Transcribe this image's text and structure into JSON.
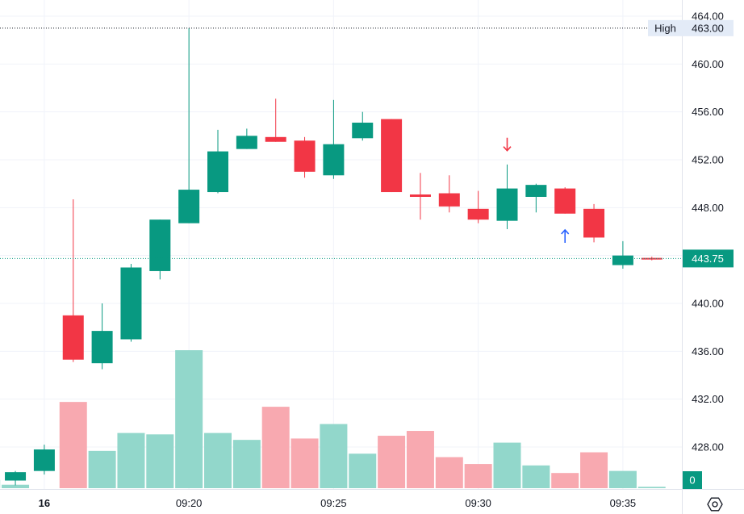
{
  "chart_data": {
    "type": "candlestick",
    "x_ticks": [
      "16",
      "09:20",
      "09:25",
      "09:30",
      "09:35"
    ],
    "y_ticks": [
      "464.00",
      "460.00",
      "456.00",
      "452.00",
      "448.00",
      "444.00",
      "440.00",
      "436.00",
      "432.00",
      "428.00"
    ],
    "ylim": [
      426.5,
      465
    ],
    "candles": [
      {
        "t": "09:14",
        "o": 425.2,
        "h": 426.0,
        "l": 424.8,
        "c": 425.9
      },
      {
        "t": "09:15",
        "o": 426.0,
        "h": 428.2,
        "l": 425.7,
        "c": 427.8
      },
      {
        "t": "09:16",
        "o": 439.0,
        "h": 448.7,
        "l": 435.1,
        "c": 435.3
      },
      {
        "t": "09:17",
        "o": 435.0,
        "h": 440.0,
        "l": 434.5,
        "c": 437.7
      },
      {
        "t": "09:18",
        "o": 437.0,
        "h": 443.3,
        "l": 436.8,
        "c": 443.0
      },
      {
        "t": "09:19",
        "o": 442.7,
        "h": 447.0,
        "l": 442.0,
        "c": 447.0
      },
      {
        "t": "09:20",
        "o": 446.7,
        "h": 463.0,
        "l": 446.7,
        "c": 449.5
      },
      {
        "t": "09:21",
        "o": 449.3,
        "h": 454.5,
        "l": 449.2,
        "c": 452.7
      },
      {
        "t": "09:22",
        "o": 452.9,
        "h": 454.6,
        "l": 452.9,
        "c": 454.0
      },
      {
        "t": "09:23",
        "o": 453.9,
        "h": 457.1,
        "l": 453.5,
        "c": 453.5
      },
      {
        "t": "09:24",
        "o": 453.6,
        "h": 453.9,
        "l": 450.5,
        "c": 451.0
      },
      {
        "t": "09:25",
        "o": 450.7,
        "h": 457.0,
        "l": 450.4,
        "c": 453.3
      },
      {
        "t": "09:26",
        "o": 453.8,
        "h": 456.0,
        "l": 453.6,
        "c": 455.1
      },
      {
        "t": "09:27",
        "o": 455.4,
        "h": 455.4,
        "l": 449.3,
        "c": 449.3
      },
      {
        "t": "09:28",
        "o": 449.1,
        "h": 450.9,
        "l": 447.0,
        "c": 448.9
      },
      {
        "t": "09:29",
        "o": 449.2,
        "h": 450.7,
        "l": 447.6,
        "c": 448.1
      },
      {
        "t": "09:30",
        "o": 447.9,
        "h": 449.4,
        "l": 446.7,
        "c": 447.0
      },
      {
        "t": "09:31",
        "o": 446.9,
        "h": 451.6,
        "l": 446.2,
        "c": 449.6
      },
      {
        "t": "09:32",
        "o": 448.9,
        "h": 450.0,
        "l": 447.6,
        "c": 449.9
      },
      {
        "t": "09:33",
        "o": 449.6,
        "h": 449.7,
        "l": 447.5,
        "c": 447.5
      },
      {
        "t": "09:34",
        "o": 447.9,
        "h": 448.3,
        "l": 445.1,
        "c": 445.5
      },
      {
        "t": "09:35",
        "o": 443.2,
        "h": 445.2,
        "l": 442.9,
        "c": 444.0
      },
      {
        "t": "09:36",
        "o": 443.8,
        "h": 443.9,
        "l": 443.6,
        "c": 443.75
      }
    ],
    "volume_bars": [
      {
        "t": "09:13",
        "v": 0.06,
        "up": true
      },
      {
        "t": "09:14",
        "v": 0.025,
        "up": true
      },
      {
        "t": "09:16",
        "v": 0.625,
        "up": false
      },
      {
        "t": "09:17",
        "v": 0.27,
        "up": true
      },
      {
        "t": "09:18",
        "v": 0.4,
        "up": true
      },
      {
        "t": "09:19",
        "v": 0.39,
        "up": true
      },
      {
        "t": "09:20",
        "v": 1.0,
        "up": true
      },
      {
        "t": "09:21",
        "v": 0.4,
        "up": true
      },
      {
        "t": "09:22",
        "v": 0.35,
        "up": true
      },
      {
        "t": "09:23",
        "v": 0.59,
        "up": false
      },
      {
        "t": "09:24",
        "v": 0.36,
        "up": false
      },
      {
        "t": "09:25",
        "v": 0.465,
        "up": true
      },
      {
        "t": "09:26",
        "v": 0.25,
        "up": true
      },
      {
        "t": "09:27",
        "v": 0.38,
        "up": false
      },
      {
        "t": "09:28",
        "v": 0.415,
        "up": false
      },
      {
        "t": "09:29",
        "v": 0.225,
        "up": false
      },
      {
        "t": "09:30",
        "v": 0.175,
        "up": false
      },
      {
        "t": "09:31",
        "v": 0.33,
        "up": true
      },
      {
        "t": "09:32",
        "v": 0.165,
        "up": true
      },
      {
        "t": "09:33",
        "v": 0.11,
        "up": false
      },
      {
        "t": "09:34",
        "v": 0.26,
        "up": false
      },
      {
        "t": "09:35",
        "v": 0.125,
        "up": true
      },
      {
        "t": "09:36",
        "v": 0.01,
        "up": true
      }
    ],
    "markers": [
      {
        "t": "09:31",
        "direction": "down",
        "color": "#f23645",
        "price": 453.3
      },
      {
        "t": "09:33",
        "direction": "up",
        "color": "#2962ff",
        "price": 445.6
      }
    ],
    "high_line": {
      "label": "High",
      "value": "463.00",
      "price": 463.0
    },
    "last_price": {
      "value": "443.75",
      "price": 443.75
    },
    "volume_axis_label": "0",
    "settings_icon": "gear-icon",
    "colors": {
      "up": "#089981",
      "down": "#f23645",
      "volume_up": "#92d7cb",
      "volume_down": "#f8a9b0",
      "grid": "#f0f3fa",
      "text": "#131722",
      "high_tag_bg": "#e3ebf7",
      "last_tag_bg": "#089981"
    }
  }
}
